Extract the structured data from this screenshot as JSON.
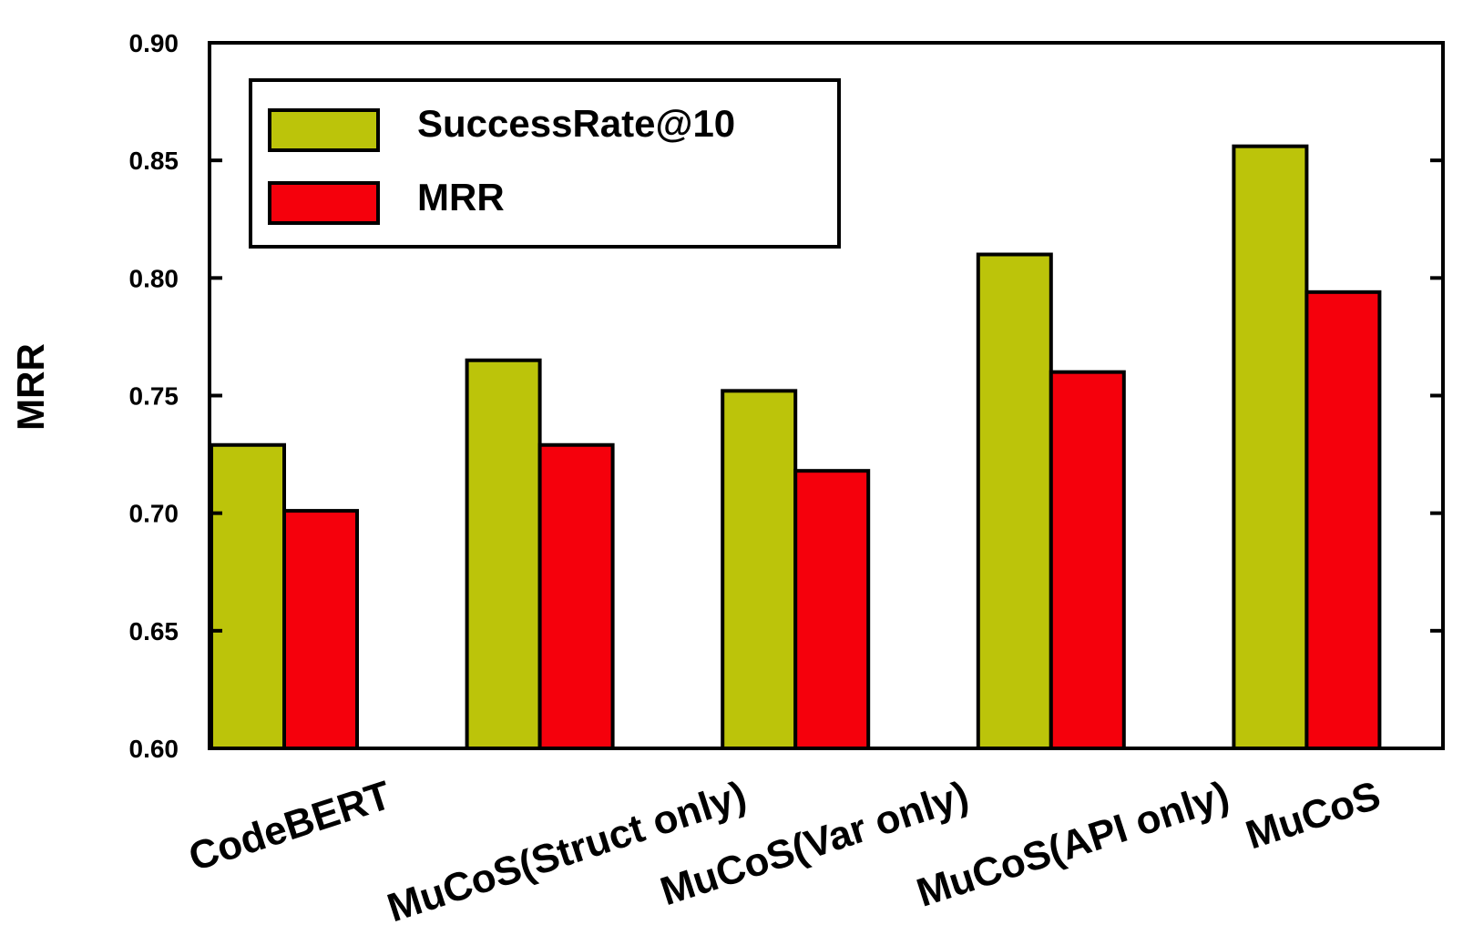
{
  "chart_data": {
    "type": "bar",
    "categories": [
      "CodeBERT",
      "MuCoS(Struct only)",
      "MuCoS(Var only)",
      "MuCoS(API only)",
      "MuCoS"
    ],
    "series": [
      {
        "name": "SuccessRate@10",
        "color": "#bcc40a",
        "values": [
          0.729,
          0.765,
          0.752,
          0.81,
          0.856
        ]
      },
      {
        "name": "MRR",
        "color": "#f5000c",
        "values": [
          0.701,
          0.729,
          0.718,
          0.76,
          0.794
        ]
      }
    ],
    "ylabel": "MRR",
    "xlabel": "",
    "ylim": [
      0.6,
      0.9
    ],
    "yticks": [
      "0.60",
      "0.65",
      "0.70",
      "0.75",
      "0.80",
      "0.85",
      "0.90"
    ],
    "legend_position": "top-left",
    "grid": false
  }
}
